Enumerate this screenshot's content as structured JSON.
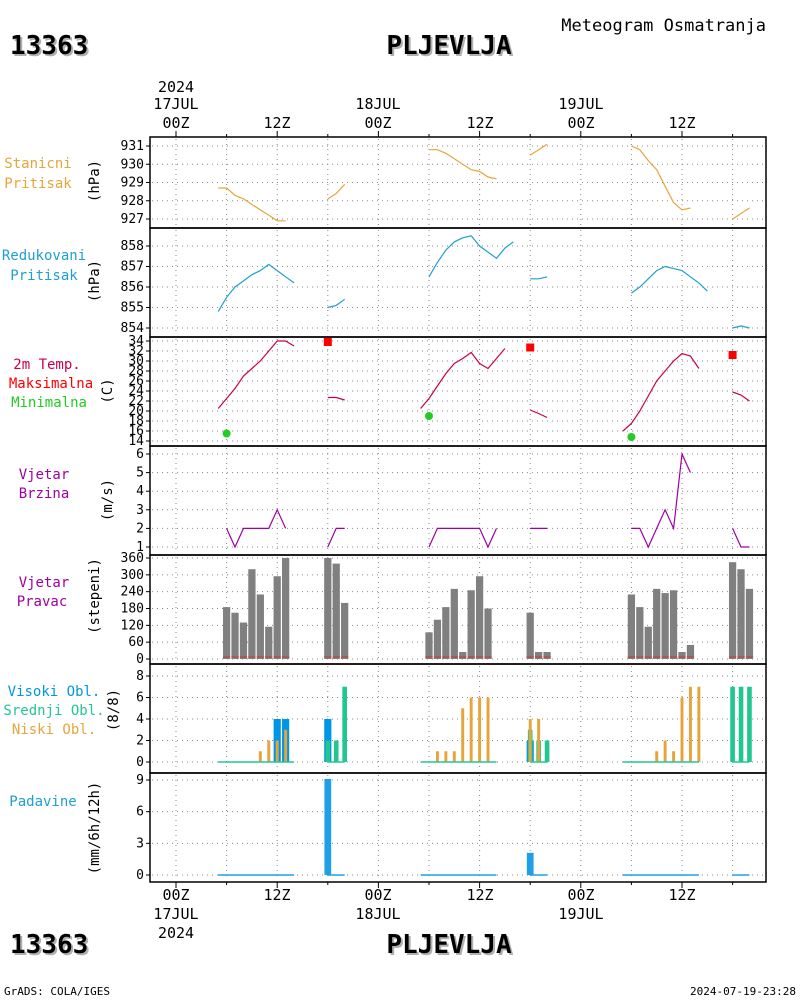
{
  "header": {
    "station_id": "13363",
    "station_name": "PLJEVLJA",
    "title": "Meteogram Osmatranja"
  },
  "footer": {
    "credit": "GrADS: COLA/IGES",
    "timestamp": "2024-07-19-23:28"
  },
  "time_axis": {
    "year": "2024",
    "day_labels": [
      "17JUL",
      "18JUL",
      "19JUL"
    ],
    "tick_labels": [
      "00Z",
      "12Z",
      "00Z",
      "12Z",
      "00Z",
      "12Z"
    ],
    "tick_hours": [
      0,
      12,
      24,
      36,
      48,
      60
    ]
  },
  "colors": {
    "pressure_station": "#e6a53c",
    "pressure_reduced": "#1e9fd2",
    "temp": "#c8004a",
    "tmax": "#ff0000",
    "tmin": "#22cc22",
    "wind": "#a000a0",
    "wind_dir_bar": "#808080",
    "cloud_high": "#0096e6",
    "cloud_mid": "#20c890",
    "cloud_low": "#e6a53c",
    "precip": "#1e9fe6"
  },
  "panels": {
    "station_pressure": {
      "label_lines": [
        "Stanicni",
        "Pritisak"
      ],
      "unit": "(hPa)"
    },
    "reduced_pressure": {
      "label_lines": [
        "Redukovani",
        "Pritisak"
      ],
      "unit": "(hPa)"
    },
    "temperature": {
      "label_lines": [
        "2m Temp.",
        "Maksimalna",
        "Minimalna"
      ],
      "unit": "(C)"
    },
    "wind_speed": {
      "label_lines": [
        "Vjetar",
        "Brzina"
      ],
      "unit": "(m/s)"
    },
    "wind_direction": {
      "label_lines": [
        "Vjetar",
        "Pravac"
      ],
      "unit": "(stepeni)"
    },
    "clouds": {
      "label_lines": [
        "Visoki Obl.",
        "Srednji Obl.",
        "Niski Obl."
      ],
      "unit": "(8/8)"
    },
    "precipitation": {
      "label_lines": [
        "Padavine"
      ],
      "unit": "(mm/6h/12h)"
    }
  },
  "chart_data": [
    {
      "type": "line",
      "name": "station_pressure",
      "ylim": [
        926.5,
        931.5
      ],
      "yticks": [
        927,
        928,
        929,
        930,
        931
      ],
      "segments": [
        [
          [
            5,
            928.7
          ],
          [
            6,
            928.7
          ],
          [
            7,
            928.3
          ],
          [
            8,
            928.1
          ],
          [
            9,
            927.8
          ],
          [
            10,
            927.5
          ],
          [
            11,
            927.2
          ],
          [
            12,
            926.9
          ],
          [
            13,
            926.9
          ]
        ],
        [
          [
            18,
            928.1
          ],
          [
            19,
            928.4
          ],
          [
            20,
            928.9
          ]
        ],
        [
          [
            30,
            930.8
          ],
          [
            31,
            930.8
          ],
          [
            32,
            930.6
          ],
          [
            33,
            930.3
          ],
          [
            34,
            930.0
          ],
          [
            35,
            929.7
          ],
          [
            36,
            929.6
          ],
          [
            37,
            929.3
          ],
          [
            38,
            929.2
          ]
        ],
        [
          [
            42,
            930.5
          ],
          [
            43,
            930.8
          ],
          [
            44,
            931.1
          ]
        ],
        [
          [
            54,
            931.0
          ],
          [
            55,
            930.8
          ],
          [
            56,
            930.2
          ],
          [
            57,
            929.7
          ],
          [
            58,
            928.8
          ],
          [
            59,
            927.9
          ],
          [
            60,
            927.5
          ],
          [
            61,
            927.6
          ]
        ],
        [
          [
            66,
            927.0
          ],
          [
            67,
            927.3
          ],
          [
            68,
            927.6
          ]
        ]
      ]
    },
    {
      "type": "line",
      "name": "reduced_pressure",
      "ylim": [
        853.6,
        858.7
      ],
      "yticks": [
        854,
        855,
        856,
        857,
        858
      ],
      "segments": [
        [
          [
            5,
            854.8
          ],
          [
            6,
            855.5
          ],
          [
            7,
            856.0
          ],
          [
            8,
            856.3
          ],
          [
            9,
            856.6
          ],
          [
            10,
            856.8
          ],
          [
            11,
            857.1
          ],
          [
            12,
            856.8
          ],
          [
            13,
            856.5
          ],
          [
            14,
            856.2
          ]
        ],
        [
          [
            18,
            855.0
          ],
          [
            19,
            855.1
          ],
          [
            20,
            855.4
          ]
        ],
        [
          [
            30,
            856.5
          ],
          [
            31,
            857.2
          ],
          [
            32,
            857.8
          ],
          [
            33,
            858.2
          ],
          [
            34,
            858.4
          ],
          [
            35,
            858.5
          ],
          [
            36,
            858.0
          ],
          [
            37,
            857.7
          ],
          [
            38,
            857.4
          ],
          [
            39,
            857.9
          ],
          [
            40,
            858.2
          ]
        ],
        [
          [
            42,
            856.4
          ],
          [
            43,
            856.4
          ],
          [
            44,
            856.5
          ]
        ],
        [
          [
            54,
            855.7
          ],
          [
            55,
            856.0
          ],
          [
            56,
            856.4
          ],
          [
            57,
            856.8
          ],
          [
            58,
            857.0
          ],
          [
            59,
            856.9
          ],
          [
            60,
            856.8
          ],
          [
            61,
            856.5
          ],
          [
            62,
            856.2
          ],
          [
            63,
            855.8
          ]
        ],
        [
          [
            66,
            854.0
          ],
          [
            67,
            854.1
          ],
          [
            68,
            854.0
          ]
        ]
      ]
    },
    {
      "type": "line",
      "name": "temperature",
      "ylim": [
        13,
        35
      ],
      "yticks": [
        14,
        16,
        18,
        20,
        22,
        24,
        26,
        28,
        30,
        32,
        34
      ],
      "segments": [
        [
          [
            5,
            20.5
          ],
          [
            6,
            22.5
          ],
          [
            7,
            24.5
          ],
          [
            8,
            27
          ],
          [
            9,
            28.5
          ],
          [
            10,
            30
          ],
          [
            11,
            32
          ],
          [
            12,
            34
          ],
          [
            13,
            34
          ],
          [
            14,
            33
          ]
        ],
        [
          [
            18,
            22.7
          ],
          [
            19,
            22.7
          ],
          [
            20,
            22.2
          ]
        ],
        [
          [
            29,
            20.5
          ],
          [
            30,
            22.5
          ],
          [
            31,
            25
          ],
          [
            32,
            27.5
          ],
          [
            33,
            29.5
          ],
          [
            34,
            30.5
          ],
          [
            35,
            31.7
          ],
          [
            36,
            29.5
          ],
          [
            37,
            28.5
          ],
          [
            38,
            30.5
          ],
          [
            39,
            32.5
          ]
        ],
        [
          [
            42,
            20.2
          ],
          [
            43,
            19.5
          ],
          [
            44,
            18.7
          ]
        ],
        [
          [
            53,
            16
          ],
          [
            54,
            17.5
          ],
          [
            55,
            20
          ],
          [
            56,
            23
          ],
          [
            57,
            26
          ],
          [
            58,
            28
          ],
          [
            59,
            30
          ],
          [
            60,
            31.5
          ],
          [
            61,
            31
          ],
          [
            62,
            28.5
          ]
        ],
        [
          [
            66,
            23.8
          ],
          [
            67,
            23.2
          ],
          [
            68,
            22
          ]
        ]
      ],
      "tmax": [
        [
          18,
          33.8
        ],
        [
          42,
          32.7
        ],
        [
          66,
          31.2
        ]
      ],
      "tmin": [
        [
          6,
          15.5
        ],
        [
          30,
          19.0
        ],
        [
          54,
          14.8
        ]
      ]
    },
    {
      "type": "line",
      "name": "wind_speed",
      "ylim": [
        0.5,
        6.3
      ],
      "yticks": [
        1,
        2,
        3,
        4,
        5,
        6
      ],
      "segments": [
        [
          [
            6,
            2
          ],
          [
            7,
            1
          ],
          [
            8,
            2
          ],
          [
            9,
            2
          ],
          [
            10,
            2
          ],
          [
            11,
            2
          ],
          [
            12,
            3
          ],
          [
            13,
            2
          ]
        ],
        [
          [
            18,
            1
          ],
          [
            19,
            2
          ],
          [
            20,
            2
          ]
        ],
        [
          [
            30,
            1
          ],
          [
            31,
            2
          ],
          [
            32,
            2
          ],
          [
            33,
            2
          ],
          [
            34,
            2
          ],
          [
            35,
            2
          ],
          [
            36,
            2
          ],
          [
            37,
            1
          ],
          [
            38,
            2
          ]
        ],
        [
          [
            42,
            2
          ],
          [
            43,
            2
          ],
          [
            44,
            2
          ]
        ],
        [
          [
            54,
            2
          ],
          [
            55,
            2
          ],
          [
            56,
            1
          ],
          [
            57,
            2
          ],
          [
            58,
            3
          ],
          [
            59,
            2
          ],
          [
            60,
            6
          ],
          [
            61,
            5
          ]
        ],
        [
          [
            66,
            2
          ],
          [
            67,
            1
          ],
          [
            68,
            1
          ]
        ]
      ]
    },
    {
      "type": "bar",
      "name": "wind_direction",
      "ylim": [
        0,
        360
      ],
      "yticks": [
        0,
        60,
        120,
        180,
        240,
        300,
        360
      ],
      "bars": [
        [
          6,
          185
        ],
        [
          7,
          165
        ],
        [
          8,
          130
        ],
        [
          9,
          320
        ],
        [
          10,
          230
        ],
        [
          11,
          115
        ],
        [
          12,
          295
        ],
        [
          13,
          360
        ],
        [
          18,
          360
        ],
        [
          19,
          340
        ],
        [
          20,
          200
        ],
        [
          30,
          95
        ],
        [
          31,
          140
        ],
        [
          32,
          185
        ],
        [
          33,
          250
        ],
        [
          34,
          25
        ],
        [
          35,
          245
        ],
        [
          36,
          295
        ],
        [
          37,
          180
        ],
        [
          42,
          165
        ],
        [
          43,
          25
        ],
        [
          44,
          25
        ],
        [
          54,
          230
        ],
        [
          55,
          185
        ],
        [
          56,
          115
        ],
        [
          57,
          250
        ],
        [
          58,
          235
        ],
        [
          59,
          245
        ],
        [
          60,
          25
        ],
        [
          61,
          50
        ],
        [
          66,
          345
        ],
        [
          67,
          320
        ],
        [
          68,
          250
        ]
      ]
    },
    {
      "type": "bar",
      "name": "clouds",
      "ylim": [
        -0.3,
        8.5
      ],
      "yticks": [
        0,
        2,
        4,
        6,
        8
      ],
      "series": [
        {
          "name": "Visoki Obl.",
          "bars": [
            [
              12,
              4
            ],
            [
              13,
              4
            ],
            [
              18,
              4
            ],
            [
              42,
              2
            ]
          ]
        },
        {
          "name": "Srednji Obl.",
          "bars": [
            [
              18,
              2
            ],
            [
              19,
              2
            ],
            [
              20,
              7
            ],
            [
              42,
              3
            ],
            [
              43,
              2
            ],
            [
              44,
              2
            ],
            [
              66,
              7
            ],
            [
              67,
              7
            ],
            [
              68,
              7
            ]
          ]
        },
        {
          "name": "Niski Obl.",
          "bars": [
            [
              10,
              1
            ],
            [
              11,
              2
            ],
            [
              12,
              2
            ],
            [
              13,
              3
            ],
            [
              31,
              1
            ],
            [
              32,
              1
            ],
            [
              33,
              1
            ],
            [
              34,
              5
            ],
            [
              35,
              6
            ],
            [
              36,
              6
            ],
            [
              37,
              6
            ],
            [
              42,
              4
            ],
            [
              43,
              4
            ],
            [
              57,
              1
            ],
            [
              58,
              2
            ],
            [
              59,
              1
            ],
            [
              60,
              6
            ],
            [
              61,
              7
            ],
            [
              62,
              7
            ]
          ]
        }
      ]
    },
    {
      "type": "bar",
      "name": "precipitation",
      "ylim": [
        -0.5,
        9.6
      ],
      "yticks": [
        0,
        3,
        6,
        9
      ],
      "bars": [
        [
          18,
          9.1
        ],
        [
          42,
          2.1
        ]
      ]
    }
  ]
}
